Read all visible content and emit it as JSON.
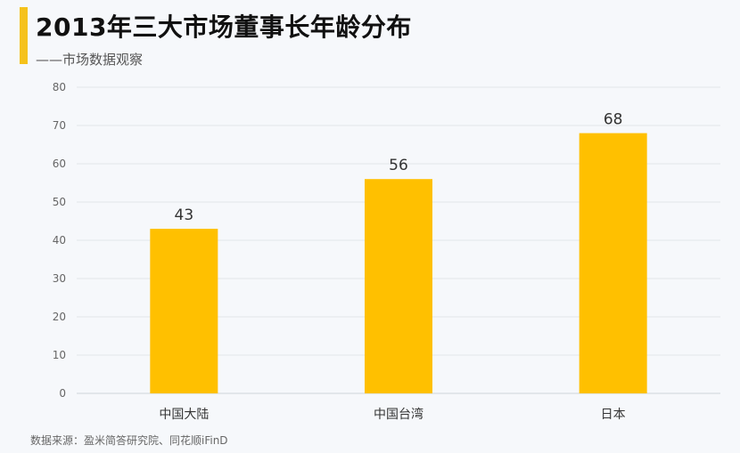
{
  "header": {
    "title": "2013年三大市场董事长年龄分布",
    "subtitle": "——市场数据观察"
  },
  "footer": {
    "source": "数据来源：盈米简答研究院、同花顺iFinD"
  },
  "colors": {
    "accent": "#f5c21b",
    "bar": "#ffc000",
    "gridline": "#e3e6ea",
    "background": "#f6f8fb"
  },
  "chart_data": {
    "type": "bar",
    "categories": [
      "中国大陆",
      "中国台湾",
      "日本"
    ],
    "values": [
      43,
      56,
      68
    ],
    "data_labels": [
      "43",
      "56",
      "68"
    ],
    "ylim": [
      0,
      80
    ],
    "yticks": [
      0,
      10,
      20,
      30,
      40,
      50,
      60,
      70,
      80
    ],
    "grid": true,
    "legend": "none",
    "xlabel": "",
    "ylabel": ""
  }
}
